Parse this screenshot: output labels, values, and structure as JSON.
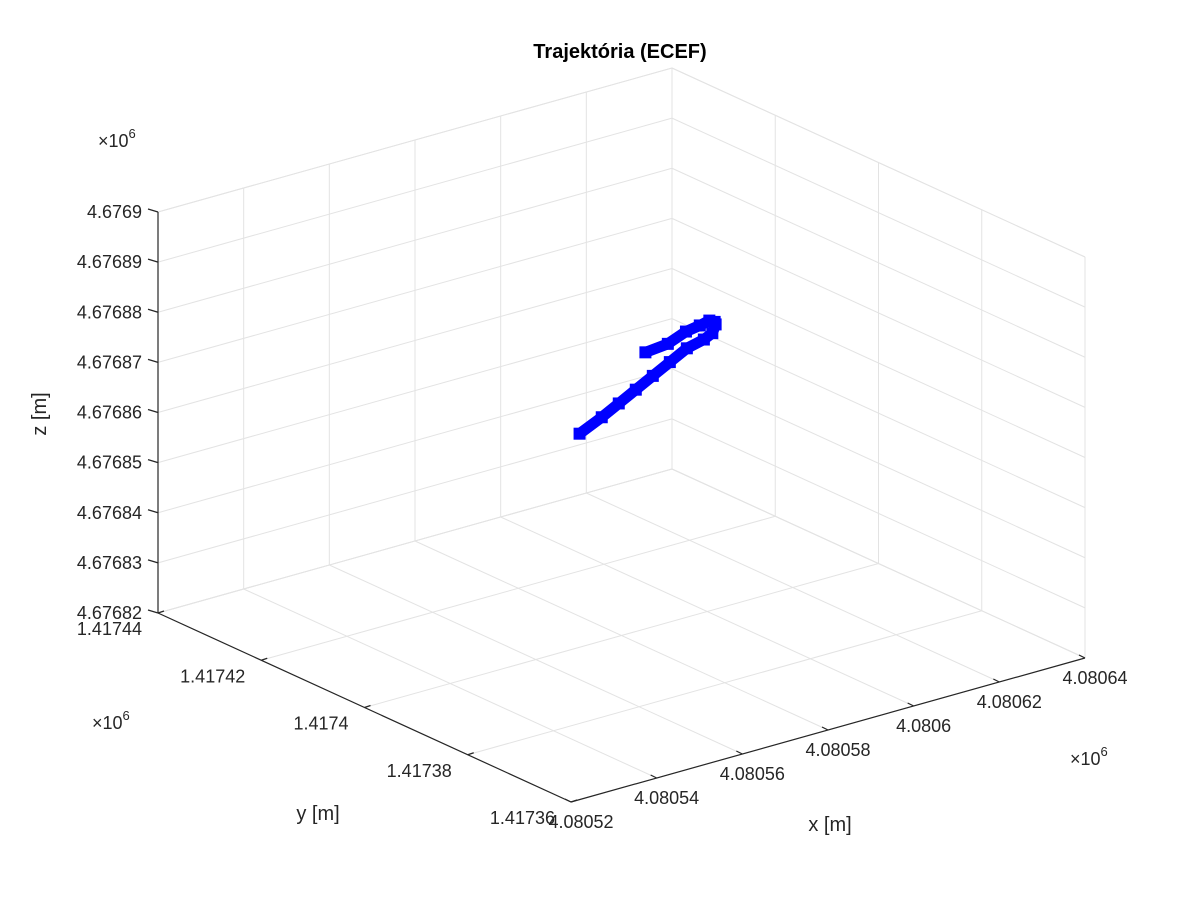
{
  "chart_data": {
    "type": "line",
    "dimensions": "3d",
    "title": "Trajektória (ECEF)",
    "xlabel": "x [m]",
    "ylabel": "y [m]",
    "zlabel": "z [m]",
    "x_multiplier": "×10",
    "y_multiplier": "×10",
    "z_multiplier": "×10",
    "multiplier_exponent": "6",
    "xlim": [
      4.08052,
      4.08064
    ],
    "ylim": [
      1.41736,
      1.41744
    ],
    "zlim": [
      4.67682,
      4.6769
    ],
    "x_ticks": [
      "4.08052",
      "4.08054",
      "4.08056",
      "4.08058",
      "4.0806",
      "4.08062",
      "4.08064"
    ],
    "y_ticks": [
      "1.41736",
      "1.41738",
      "1.4174",
      "1.41742",
      "1.41744"
    ],
    "z_ticks": [
      "4.67682",
      "4.67683",
      "4.67684",
      "4.67685",
      "4.67686",
      "4.67687",
      "4.67688",
      "4.67689",
      "4.6769"
    ],
    "grid": true,
    "series": [
      {
        "color": "#0000ff",
        "marker": "square",
        "x": [
          4.080522,
          4.080532,
          4.080542,
          4.080552,
          4.080562,
          4.080572,
          4.080582,
          4.080592,
          4.0806,
          4.080608,
          4.080615,
          4.080621,
          4.080626,
          4.08063,
          4.080633,
          4.080635
        ],
        "y": [
          1.41736,
          1.417364,
          1.417369,
          1.417374,
          1.417379,
          1.417384,
          1.417389,
          1.417394,
          1.417399,
          1.417405,
          1.417411,
          1.417417,
          1.417423,
          1.417429,
          1.417435,
          1.417441
        ],
        "z": [
          4.676893,
          4.676892,
          4.67689,
          4.676888,
          4.676886,
          4.676884,
          4.676882,
          4.676879,
          4.676876,
          4.676873,
          4.676869,
          4.676865,
          4.67686,
          4.676855,
          4.676849,
          4.676844
        ]
      }
    ]
  }
}
